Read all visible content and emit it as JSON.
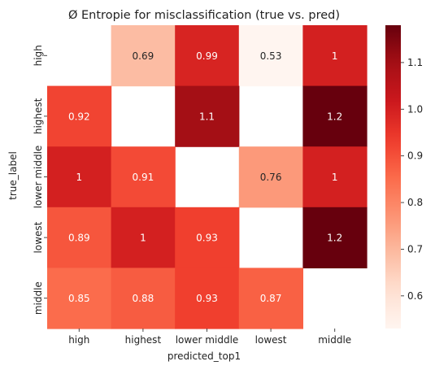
{
  "chart_data": {
    "type": "heatmap",
    "title": "Ø Entropie for misclassification (true vs. pred)",
    "xlabel": "predicted_top1",
    "ylabel": "true_label",
    "x_categories": [
      "high",
      "highest",
      "lower middle",
      "lowest",
      "middle"
    ],
    "y_categories": [
      "high",
      "highest",
      "lower middle",
      "lowest",
      "middle"
    ],
    "values": [
      [
        null,
        0.69,
        0.99,
        0.53,
        1.0
      ],
      [
        0.92,
        null,
        1.1,
        null,
        1.2
      ],
      [
        1.0,
        0.91,
        null,
        0.76,
        1.0
      ],
      [
        0.89,
        1.0,
        0.93,
        null,
        1.2
      ],
      [
        0.85,
        0.88,
        0.93,
        0.87,
        null
      ]
    ],
    "value_labels": [
      [
        "",
        "0.69",
        "0.99",
        "0.53",
        "1"
      ],
      [
        "0.92",
        "",
        "1.1",
        "",
        "1.2"
      ],
      [
        "1",
        "0.91",
        "",
        "0.76",
        "1"
      ],
      [
        "0.89",
        "1",
        "0.93",
        "",
        "1.2"
      ],
      [
        "0.85",
        "0.88",
        "0.93",
        "0.87",
        ""
      ]
    ],
    "colormap": "Reds",
    "colorbar": {
      "range": [
        0.53,
        1.18
      ],
      "ticks": [
        0.6,
        0.7,
        0.8,
        0.9,
        1.0,
        1.1
      ],
      "tick_labels": [
        "0.6",
        "0.7",
        "0.8",
        "0.9",
        "1.0",
        "1.1"
      ]
    }
  }
}
